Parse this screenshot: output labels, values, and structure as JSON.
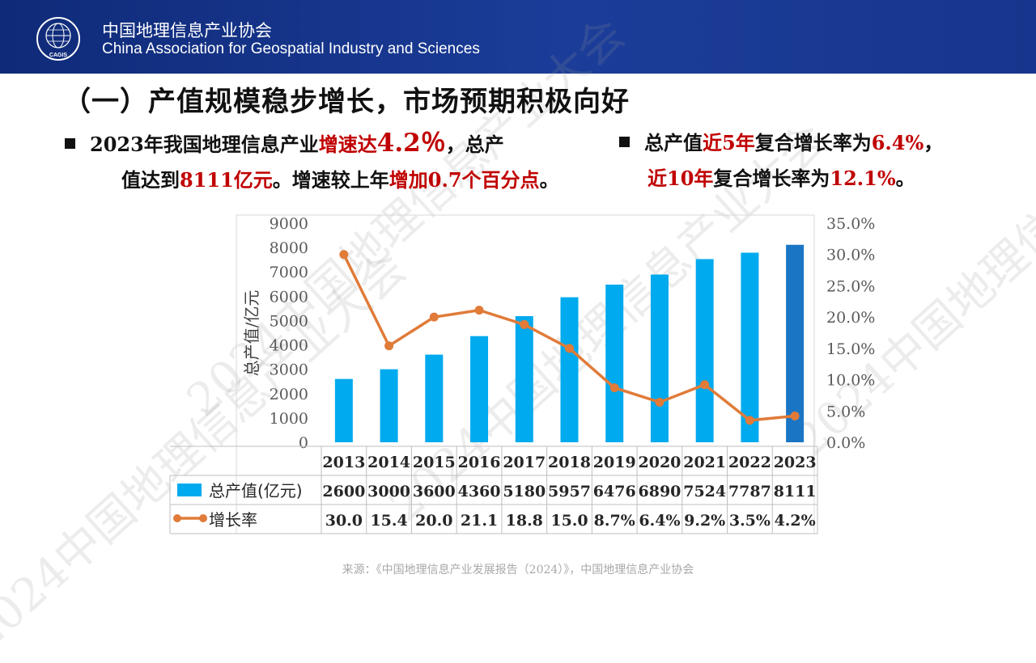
{
  "header": {
    "org_cn": "中国地理信息产业协会",
    "org_en": "China Association for Geospatial Industry and Sciences",
    "logo_text": "CAGIS"
  },
  "title": "（一）产值规模稳步增长，市场预期积极向好",
  "bullet1": {
    "p1": "2023年我国地理信息产业",
    "p2": "增速达",
    "p3": "4.2％",
    "p4": "，总产",
    "p5": "值达到",
    "p6": "8111亿元",
    "p7": "。增速较上年",
    "p8": "增加0.7个百分点",
    "p9": "。"
  },
  "bullet2": {
    "p1": "总产值",
    "p2": "近5年",
    "p3": "复合增长率为",
    "p4": "6.4%",
    "p5": "，",
    "p6": "近10年",
    "p7": "复合增长率为",
    "p8": "12.1%",
    "p9": "。"
  },
  "source": "来源：《中国地理信息产业发展报告（2024）》，中国地理信息产业协会",
  "watermark": "2024中国地理信息产业大会",
  "colors": {
    "bar": "#00aaee",
    "bar_last": "#1a75c4",
    "line": "#e07b39",
    "header": "#1b3d99",
    "highlight": "#c00000"
  },
  "chart_data": {
    "type": "bar",
    "categories": [
      "2013",
      "2014",
      "2015",
      "2016",
      "2017",
      "2018",
      "2019",
      "2020",
      "2021",
      "2022",
      "2023"
    ],
    "series": [
      {
        "name": "总产值(亿元)",
        "type": "bar",
        "axis": "left",
        "values": [
          2600,
          3000,
          3600,
          4360,
          5180,
          5957,
          6476,
          6890,
          7524,
          7787,
          8111
        ]
      },
      {
        "name": "增长率",
        "type": "line",
        "axis": "right",
        "values": [
          30.0,
          15.4,
          20.0,
          21.1,
          18.8,
          15.0,
          8.7,
          6.4,
          9.2,
          3.5,
          4.2
        ]
      }
    ],
    "table_labels": [
      "30.0",
      "15.4",
      "20.0",
      "21.1",
      "18.8",
      "15.0",
      "8.7%",
      "6.4%",
      "9.2%",
      "3.5%",
      "4.2%"
    ],
    "ylabel": "总产值/亿元",
    "ylim": [
      0,
      9000
    ],
    "yticks": [
      "0",
      "1000",
      "2000",
      "3000",
      "4000",
      "5000",
      "6000",
      "7000",
      "8000",
      "9000"
    ],
    "y2lim": [
      0,
      35
    ],
    "y2ticks": [
      "0.0%",
      "5.0%",
      "10.0%",
      "15.0%",
      "20.0%",
      "25.0%",
      "30.0%",
      "35.0%"
    ],
    "legend": "bottom data table"
  }
}
